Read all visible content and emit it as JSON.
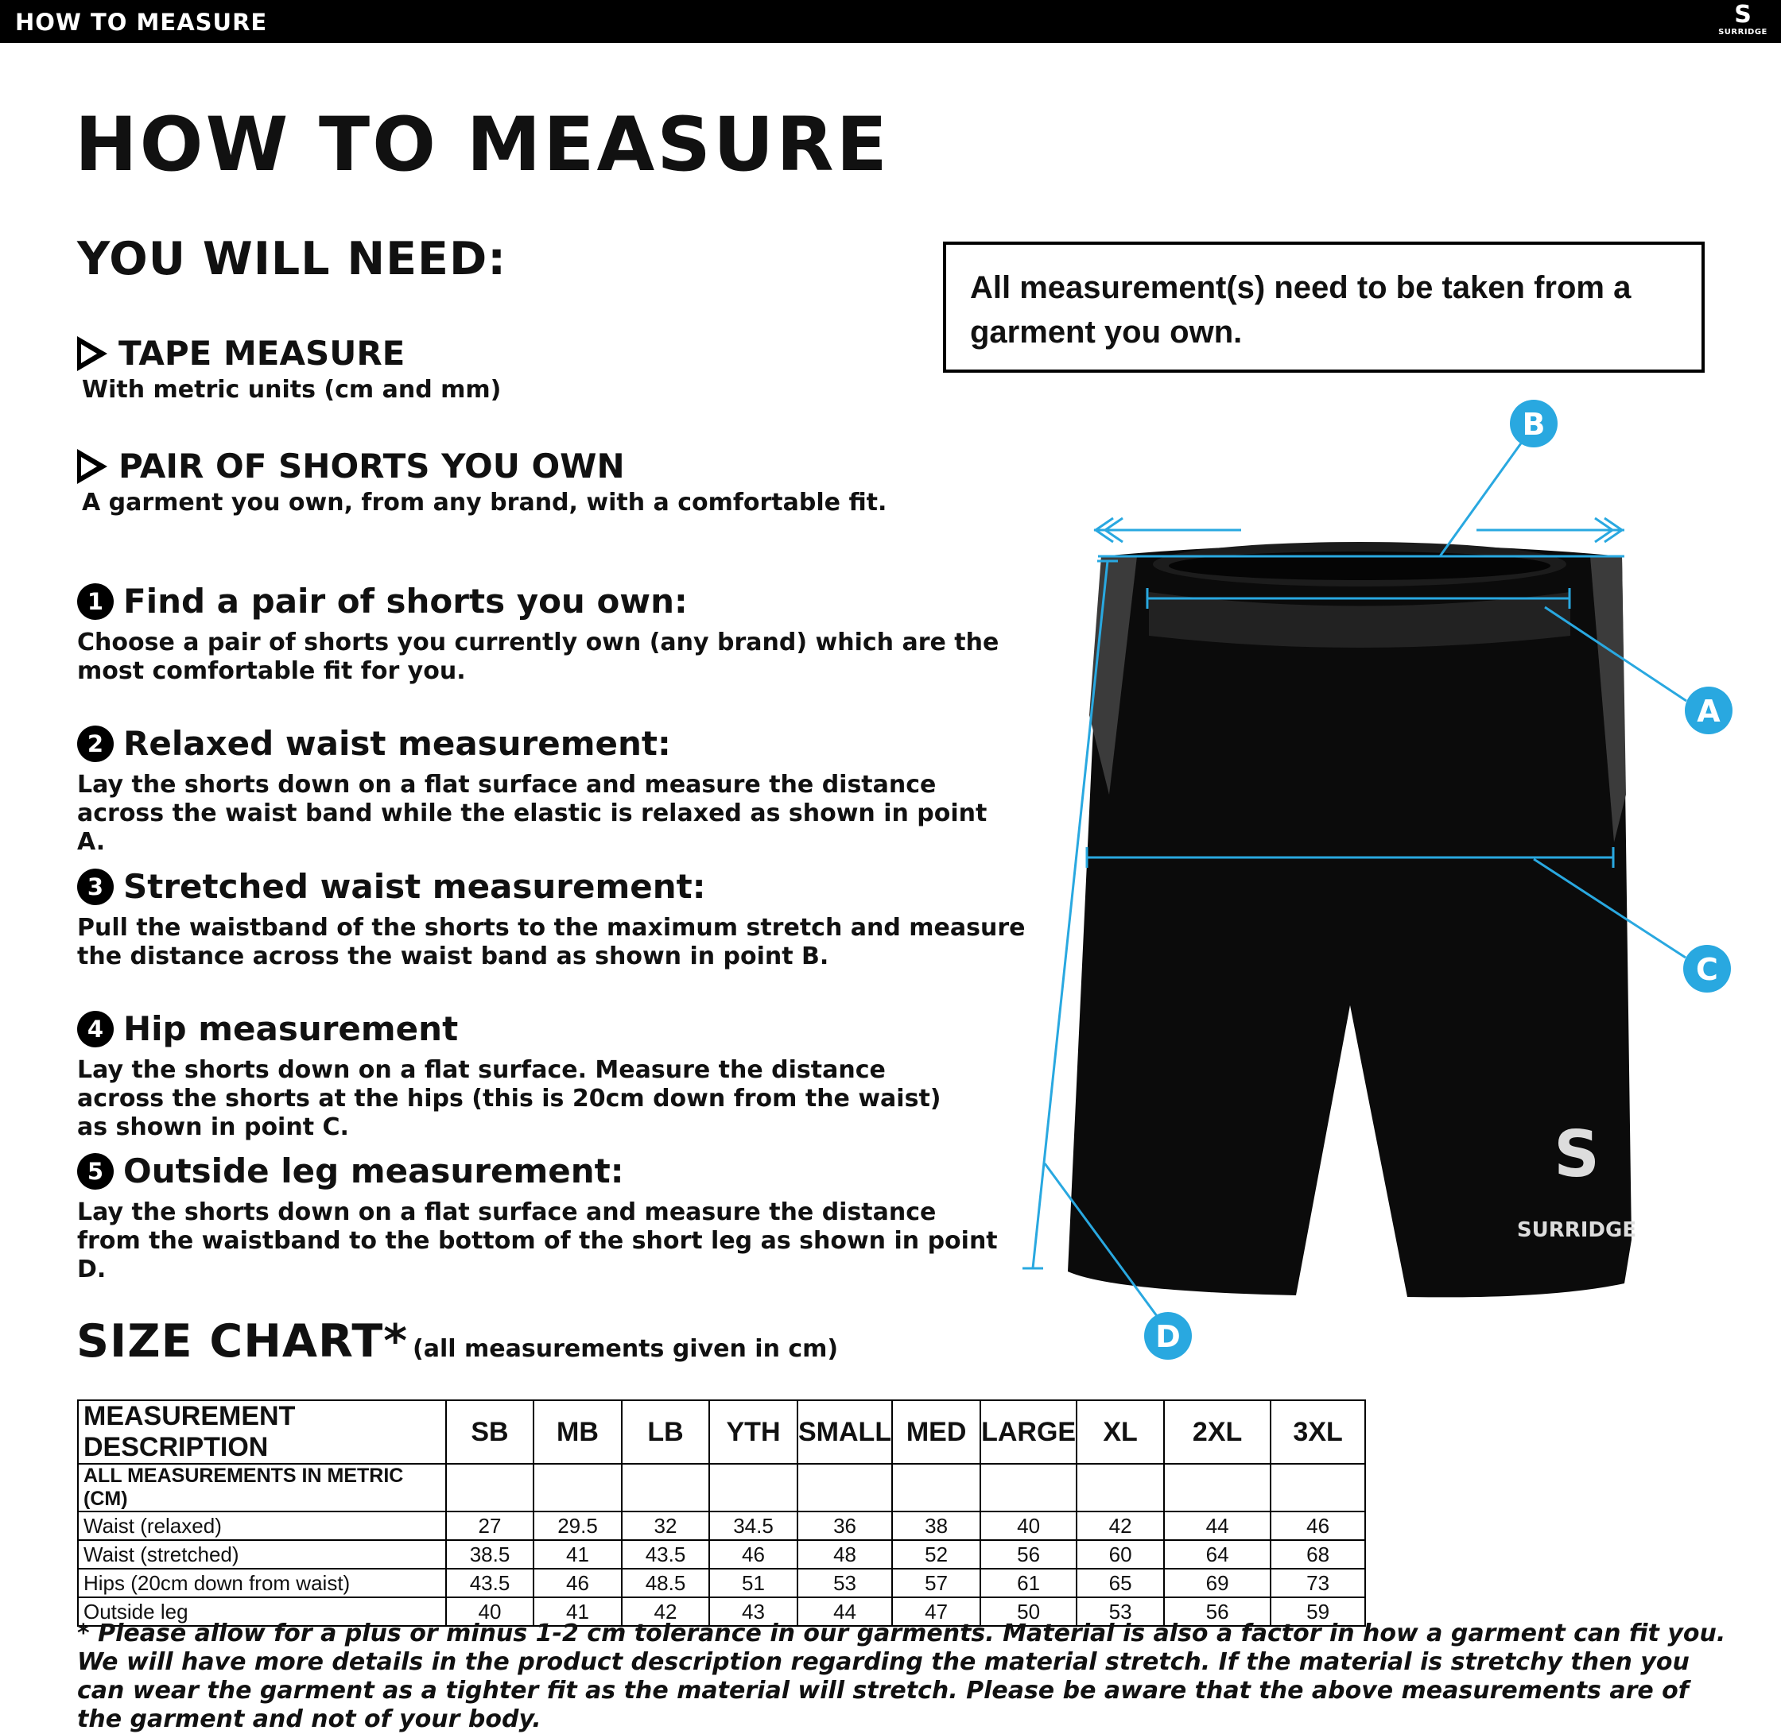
{
  "header": {
    "title": "HOW TO MEASURE",
    "logo_text": "SURRIDGE"
  },
  "page_title": "HOW TO MEASURE",
  "you_will_need": "YOU WILL NEED:",
  "notice": "All measurement(s) need to be taken from a garment you own.",
  "needs": [
    {
      "title": "TAPE MEASURE",
      "sub": "With metric units (cm and mm)"
    },
    {
      "title": "PAIR OF SHORTS YOU OWN",
      "sub": "A garment you own, from any brand, with a comfortable fit."
    }
  ],
  "steps": [
    {
      "num": "1",
      "title": "Find a pair of shorts you own:",
      "body": "Choose a pair of shorts you currently own (any brand) which are the most comfortable fit for you."
    },
    {
      "num": "2",
      "title": "Relaxed waist measurement:",
      "body": "Lay the shorts down on a flat surface and measure the distance across the waist band while the elastic is relaxed as shown in point A."
    },
    {
      "num": "3",
      "title": "Stretched waist measurement:",
      "body": "Pull the waistband of the shorts to the maximum stretch and measure the distance across the waist band as shown in point B."
    },
    {
      "num": "4",
      "title": "Hip measurement",
      "body": "Lay the shorts down on a flat surface. Measure the distance across the shorts at the hips (this is 20cm down from the waist)  as shown in point C."
    },
    {
      "num": "5",
      "title": "Outside leg measurement:",
      "body": "Lay the shorts down on a flat surface and measure the distance from the waistband to the bottom of the short leg as shown in point D."
    }
  ],
  "diagram": {
    "labels": {
      "a": "A",
      "b": "B",
      "c": "C",
      "d": "D"
    },
    "accent": "#29a8e0",
    "garment_logo": "SURRIDGE"
  },
  "size_chart": {
    "title": "SIZE CHART*",
    "note": "(all measurements given in cm)",
    "headers": [
      "MEASUREMENT DESCRIPTION",
      "SB",
      "MB",
      "LB",
      "YTH",
      "SMALL",
      "MED",
      "LARGE",
      "XL",
      "2XL",
      "3XL"
    ],
    "metric_row": "ALL MEASUREMENTS IN METRIC (CM)",
    "rows": [
      {
        "label": "Waist (relaxed)",
        "values": [
          "27",
          "29.5",
          "32",
          "34.5",
          "36",
          "38",
          "40",
          "42",
          "44",
          "46"
        ]
      },
      {
        "label": "Waist (stretched)",
        "values": [
          "38.5",
          "41",
          "43.5",
          "46",
          "48",
          "52",
          "56",
          "60",
          "64",
          "68"
        ]
      },
      {
        "label": "Hips (20cm down from waist)",
        "values": [
          "43.5",
          "46",
          "48.5",
          "51",
          "53",
          "57",
          "61",
          "65",
          "69",
          "73"
        ]
      },
      {
        "label": "Outside leg",
        "values": [
          "40",
          "41",
          "42",
          "43",
          "44",
          "47",
          "50",
          "53",
          "56",
          "59"
        ]
      }
    ]
  },
  "footnote": "* Please allow for a plus or minus 1-2 cm tolerance in our garments. Material is also a factor in how a garment can fit you. We will have more details in the product description regarding the material stretch.  If the material is stretchy then you can wear the garment as a tighter fit as the material will stretch.  Please be aware that the above measurements are of the garment and not of your body."
}
